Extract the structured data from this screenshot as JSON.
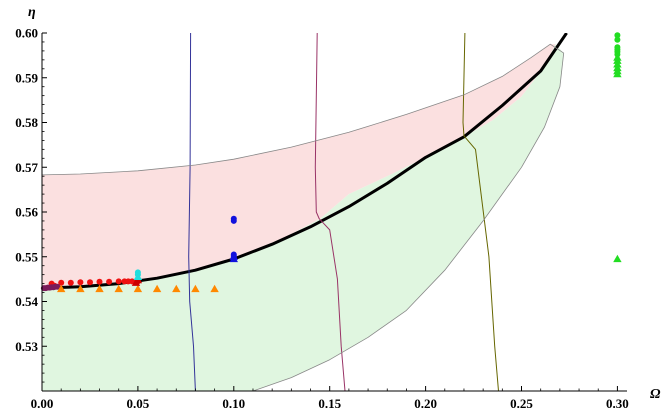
{
  "chart_data": {
    "type": "scatter",
    "xlabel": "Ω",
    "ylabel": "η",
    "xlim": [
      0,
      0.305
    ],
    "ylim": [
      0.52,
      0.6
    ],
    "xticks": [
      "0.00",
      "0.05",
      "0.10",
      "0.15",
      "0.20",
      "0.25",
      "0.30"
    ],
    "xtick_values": [
      0,
      0.05,
      0.1,
      0.15,
      0.2,
      0.25,
      0.3
    ],
    "yticks": [
      "0.53",
      "0.54",
      "0.55",
      "0.56",
      "0.57",
      "0.58",
      "0.59",
      "0.60"
    ],
    "ytick_values": [
      0.53,
      0.54,
      0.55,
      0.56,
      0.57,
      0.58,
      0.59,
      0.6
    ],
    "grid": false,
    "regions": [
      {
        "color": "#fbe0e0",
        "boundary": [
          [
            0,
            0.5683
          ],
          [
            0.02,
            0.5685
          ],
          [
            0.05,
            0.5692
          ],
          [
            0.08,
            0.5705
          ],
          [
            0.1,
            0.5718
          ],
          [
            0.13,
            0.5745
          ],
          [
            0.16,
            0.5778
          ],
          [
            0.19,
            0.5818
          ],
          [
            0.22,
            0.5862
          ],
          [
            0.24,
            0.5903
          ],
          [
            0.255,
            0.5945
          ],
          [
            0.265,
            0.5975
          ],
          [
            0.2678,
            0.5975
          ],
          [
            0.262,
            0.5925
          ],
          [
            0.25,
            0.5858
          ],
          [
            0.235,
            0.5805
          ],
          [
            0.22,
            0.5768
          ],
          [
            0.2,
            0.5722
          ],
          [
            0.18,
            0.568
          ],
          [
            0.16,
            0.564
          ],
          [
            0.145,
            0.5585
          ],
          [
            0.12,
            0.5528
          ],
          [
            0.1,
            0.5495
          ],
          [
            0.08,
            0.547
          ],
          [
            0.06,
            0.5452
          ],
          [
            0.04,
            0.544
          ],
          [
            0.02,
            0.5433
          ],
          [
            0,
            0.543
          ]
        ]
      },
      {
        "color": "#e0f6e0",
        "boundary": [
          [
            0,
            0.543
          ],
          [
            0.02,
            0.5433
          ],
          [
            0.04,
            0.544
          ],
          [
            0.06,
            0.5452
          ],
          [
            0.08,
            0.547
          ],
          [
            0.1,
            0.5495
          ],
          [
            0.12,
            0.5528
          ],
          [
            0.145,
            0.5585
          ],
          [
            0.16,
            0.564
          ],
          [
            0.18,
            0.568
          ],
          [
            0.2,
            0.5722
          ],
          [
            0.22,
            0.5768
          ],
          [
            0.235,
            0.5805
          ],
          [
            0.25,
            0.5858
          ],
          [
            0.262,
            0.5925
          ],
          [
            0.2678,
            0.5975
          ],
          [
            0.272,
            0.5955
          ],
          [
            0.27,
            0.588
          ],
          [
            0.262,
            0.579
          ],
          [
            0.25,
            0.57
          ],
          [
            0.23,
            0.558
          ],
          [
            0.21,
            0.547
          ],
          [
            0.19,
            0.538
          ],
          [
            0.17,
            0.532
          ],
          [
            0.15,
            0.527
          ],
          [
            0.13,
            0.523
          ],
          [
            0.11,
            0.52
          ],
          [
            0.05,
            0.52
          ],
          [
            0,
            0.52
          ]
        ]
      }
    ],
    "curves": [
      {
        "color": "#000000",
        "width": 3,
        "points": [
          [
            0,
            0.543
          ],
          [
            0.02,
            0.5433
          ],
          [
            0.04,
            0.544
          ],
          [
            0.06,
            0.5452
          ],
          [
            0.08,
            0.547
          ],
          [
            0.1,
            0.5495
          ],
          [
            0.12,
            0.5528
          ],
          [
            0.14,
            0.5567
          ],
          [
            0.16,
            0.5612
          ],
          [
            0.18,
            0.5664
          ],
          [
            0.2,
            0.5722
          ],
          [
            0.22,
            0.5768
          ],
          [
            0.24,
            0.5838
          ],
          [
            0.26,
            0.5915
          ],
          [
            0.2735,
            0.6
          ]
        ]
      },
      {
        "color": "#333399",
        "width": 1,
        "points": [
          [
            0.0775,
            0.6
          ],
          [
            0.0772,
            0.57
          ],
          [
            0.0765,
            0.55
          ],
          [
            0.077,
            0.54
          ],
          [
            0.079,
            0.53
          ],
          [
            0.08,
            0.52
          ]
        ]
      },
      {
        "color": "#993366",
        "width": 1,
        "points": [
          [
            0.1435,
            0.6
          ],
          [
            0.1425,
            0.57
          ],
          [
            0.143,
            0.56
          ],
          [
            0.1445,
            0.5585
          ],
          [
            0.15,
            0.556
          ],
          [
            0.154,
            0.545
          ],
          [
            0.156,
            0.53
          ],
          [
            0.158,
            0.52
          ]
        ]
      },
      {
        "color": "#666600",
        "width": 1,
        "points": [
          [
            0.2205,
            0.6
          ],
          [
            0.2195,
            0.58
          ],
          [
            0.22,
            0.577
          ],
          [
            0.226,
            0.574
          ],
          [
            0.233,
            0.55
          ],
          [
            0.236,
            0.53
          ],
          [
            0.238,
            0.52
          ]
        ]
      },
      {
        "color": "#888888",
        "width": 0.8,
        "points": [
          [
            0,
            0.5683
          ],
          [
            0.02,
            0.5685
          ],
          [
            0.05,
            0.5692
          ],
          [
            0.08,
            0.5705
          ],
          [
            0.1,
            0.5718
          ],
          [
            0.13,
            0.5745
          ],
          [
            0.16,
            0.5778
          ],
          [
            0.19,
            0.5818
          ],
          [
            0.22,
            0.5862
          ],
          [
            0.24,
            0.5903
          ],
          [
            0.255,
            0.5945
          ],
          [
            0.265,
            0.5975
          ],
          [
            0.272,
            0.5955
          ],
          [
            0.27,
            0.588
          ],
          [
            0.262,
            0.579
          ],
          [
            0.25,
            0.57
          ],
          [
            0.23,
            0.558
          ],
          [
            0.21,
            0.547
          ],
          [
            0.19,
            0.538
          ],
          [
            0.17,
            0.532
          ],
          [
            0.15,
            0.527
          ],
          [
            0.13,
            0.523
          ],
          [
            0.11,
            0.52
          ]
        ]
      }
    ],
    "series": [
      {
        "color": "#ee1111",
        "marker": "circle",
        "points": [
          [
            0.005,
            0.544
          ],
          [
            0.0065,
            0.5435
          ],
          [
            0.01,
            0.5442
          ],
          [
            0.015,
            0.5442
          ],
          [
            0.02,
            0.5443
          ],
          [
            0.025,
            0.5443
          ],
          [
            0.03,
            0.5444
          ],
          [
            0.035,
            0.5444
          ],
          [
            0.04,
            0.5445
          ],
          [
            0.043,
            0.5445
          ],
          [
            0.045,
            0.5445
          ],
          [
            0.047,
            0.5445
          ],
          [
            0.049,
            0.5445
          ],
          [
            0.05,
            0.5445
          ]
        ]
      },
      {
        "color": "#7a1a5a",
        "marker": "circle",
        "points": [
          [
            0.001,
            0.543
          ],
          [
            0.002,
            0.543
          ],
          [
            0.003,
            0.5431
          ],
          [
            0.004,
            0.5431
          ],
          [
            0.005,
            0.5432
          ],
          [
            0.006,
            0.5432
          ],
          [
            0.007,
            0.5433
          ],
          [
            0.008,
            0.5433
          ]
        ]
      },
      {
        "color": "#ff8800",
        "marker": "triangle",
        "points": [
          [
            0.01,
            0.5428
          ],
          [
            0.02,
            0.5428
          ],
          [
            0.03,
            0.5428
          ],
          [
            0.04,
            0.5428
          ],
          [
            0.05,
            0.5428
          ],
          [
            0.06,
            0.5428
          ],
          [
            0.07,
            0.5428
          ],
          [
            0.08,
            0.5428
          ],
          [
            0.09,
            0.5428
          ]
        ]
      },
      {
        "color": "#cc0000",
        "marker": "triangle",
        "points": [
          [
            0.05,
            0.5448
          ],
          [
            0.049,
            0.5442
          ]
        ]
      },
      {
        "color": "#22dddd",
        "marker": "circle",
        "points": [
          [
            0.05,
            0.5465
          ],
          [
            0.05,
            0.546
          ]
        ]
      },
      {
        "color": "#22dddd",
        "marker": "triangle",
        "points": [
          [
            0.05,
            0.5455
          ]
        ]
      },
      {
        "color": "#1111dd",
        "marker": "circle",
        "points": [
          [
            0.1,
            0.5585
          ],
          [
            0.1,
            0.558
          ],
          [
            0.1,
            0.5505
          ],
          [
            0.1,
            0.5502
          ],
          [
            0.1,
            0.5498
          ]
        ]
      },
      {
        "color": "#1111dd",
        "marker": "triangle",
        "points": [
          [
            0.1,
            0.5495
          ],
          [
            0.1,
            0.55
          ]
        ]
      },
      {
        "color": "#22dd22",
        "marker": "circle",
        "points": [
          [
            0.3,
            0.5995
          ],
          [
            0.3,
            0.5985
          ],
          [
            0.3,
            0.5968
          ],
          [
            0.3,
            0.5963
          ],
          [
            0.3,
            0.5958
          ],
          [
            0.3,
            0.5952
          ]
        ]
      },
      {
        "color": "#22dd22",
        "marker": "triangle",
        "points": [
          [
            0.3,
            0.5945
          ],
          [
            0.3,
            0.5938
          ],
          [
            0.3,
            0.593
          ],
          [
            0.3,
            0.5922
          ],
          [
            0.3,
            0.5915
          ],
          [
            0.3,
            0.5908
          ],
          [
            0.3,
            0.5495
          ]
        ]
      }
    ]
  }
}
